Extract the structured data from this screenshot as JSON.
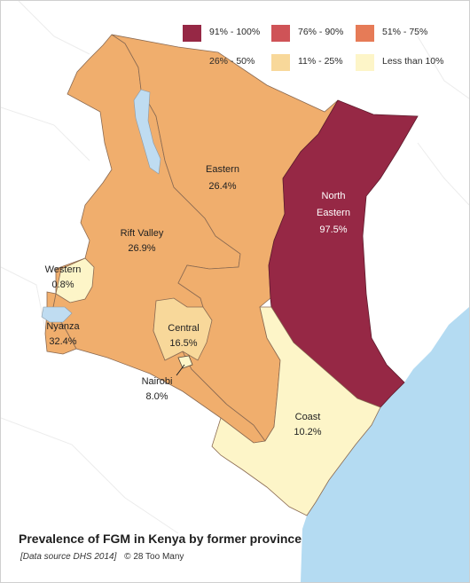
{
  "colors": {
    "c91_100": "#962845",
    "c76_90": "#cf5357",
    "c51_75": "#e67b57",
    "c26_50": "#f0ae6d",
    "c11_25": "#f8d89a",
    "c0_10": "#fdf5c8",
    "water": "#bfdcf1",
    "ocean": "#b4dbf2",
    "border": "#8a6a52"
  },
  "legend": [
    {
      "label": "91% - 100%",
      "color": "#962845"
    },
    {
      "label": "76% - 90%",
      "color": "#cf5357"
    },
    {
      "label": "51% - 75%",
      "color": "#e67b57"
    },
    {
      "label": "26% - 50%",
      "color": "#f0ae6d"
    },
    {
      "label": "11% - 25%",
      "color": "#f8d89a"
    },
    {
      "label": "Less than 10%",
      "color": "#fdf5c8"
    }
  ],
  "provinces": {
    "north_eastern": {
      "name_line1": "North",
      "name_line2": "Eastern",
      "value": "97.5%"
    },
    "eastern": {
      "name": "Eastern",
      "value": "26.4%"
    },
    "rift_valley": {
      "name": "Rift Valley",
      "value": "26.9%"
    },
    "western": {
      "name": "Western",
      "value": "0.8%"
    },
    "nyanza": {
      "name": "Nyanza",
      "value": "32.4%"
    },
    "central": {
      "name": "Central",
      "value": "16.5%"
    },
    "nairobi": {
      "name": "Nairobi",
      "value": "8.0%"
    },
    "coast": {
      "name": "Coast",
      "value": "10.2%"
    }
  },
  "footer": {
    "title": "Prevalence of FGM in Kenya by former province",
    "source": "[Data source DHS 2014]",
    "credit": "© 28 Too Many"
  }
}
